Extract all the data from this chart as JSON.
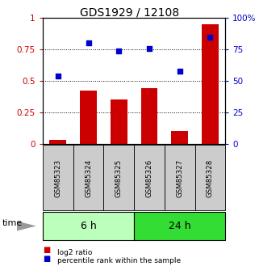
{
  "title": "GDS1929 / 12108",
  "samples": [
    "GSM85323",
    "GSM85324",
    "GSM85325",
    "GSM85326",
    "GSM85327",
    "GSM85328"
  ],
  "log2_ratio": [
    0.03,
    0.42,
    0.35,
    0.44,
    0.1,
    0.95
  ],
  "percentile_rank": [
    54,
    80,
    74,
    76,
    58,
    85
  ],
  "bar_color": "#cc0000",
  "dot_color": "#0000cc",
  "ylim_left": [
    0,
    1.0
  ],
  "ylim_right": [
    0,
    100
  ],
  "yticks_left": [
    0,
    0.25,
    0.5,
    0.75,
    1.0
  ],
  "ytick_labels_left": [
    "0",
    "0.25",
    "0.5",
    "0.75",
    "1"
  ],
  "yticks_right": [
    0,
    25,
    50,
    75,
    100
  ],
  "ytick_labels_right": [
    "0",
    "25",
    "50",
    "75",
    "100%"
  ],
  "group_labels": [
    "6 h",
    "24 h"
  ],
  "group_colors": [
    "#bbffbb",
    "#33dd33"
  ],
  "time_label": "time",
  "legend": [
    {
      "label": "log2 ratio",
      "color": "#cc0000"
    },
    {
      "label": "percentile rank within the sample",
      "color": "#0000cc"
    }
  ],
  "bg_color": "#ffffff",
  "dotted_lines": [
    0.25,
    0.5,
    0.75
  ]
}
